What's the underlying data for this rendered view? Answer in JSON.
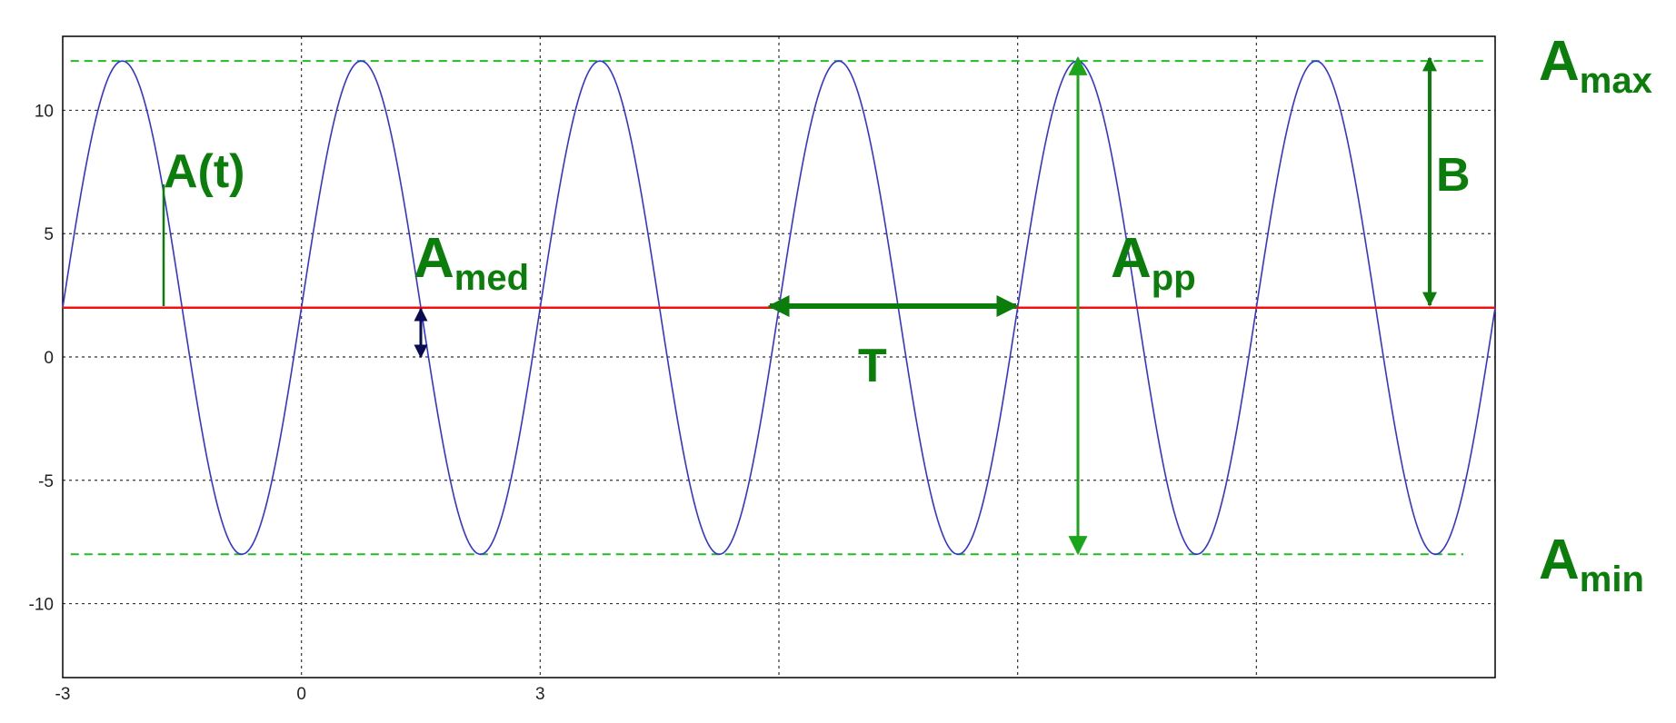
{
  "chart_data": {
    "type": "line",
    "x_ticks": [
      "-3",
      "0",
      "3"
    ],
    "y_ticks": [
      "10",
      "5",
      "0",
      "-5",
      "-10"
    ],
    "xlim": [
      -3,
      15
    ],
    "ylim": [
      -13,
      13
    ],
    "grid": true,
    "series": [
      {
        "kind": "sine",
        "color": "#3333dd",
        "mean": 2,
        "amplitude": 10,
        "period": 3,
        "first_peak_x": -2.25
      }
    ],
    "reference_lines": {
      "mean": {
        "y": 2,
        "color": "#ee1111"
      },
      "max": {
        "y": 12,
        "color": "#22bb22"
      },
      "min": {
        "y": -8,
        "color": "#22bb22"
      }
    },
    "annotations": {
      "at": {
        "text": "A(t)"
      },
      "amed": {
        "main": "A",
        "sub": "med"
      },
      "period": {
        "text": "T"
      },
      "app": {
        "main": "A",
        "sub": "pp"
      },
      "b": {
        "text": "B"
      },
      "amax": {
        "main": "A",
        "sub": "max"
      },
      "amin": {
        "main": "A",
        "sub": "min"
      }
    },
    "colors": {
      "label_green": "#0a7d0a",
      "arrow_dark": "#0b0b4f"
    }
  }
}
